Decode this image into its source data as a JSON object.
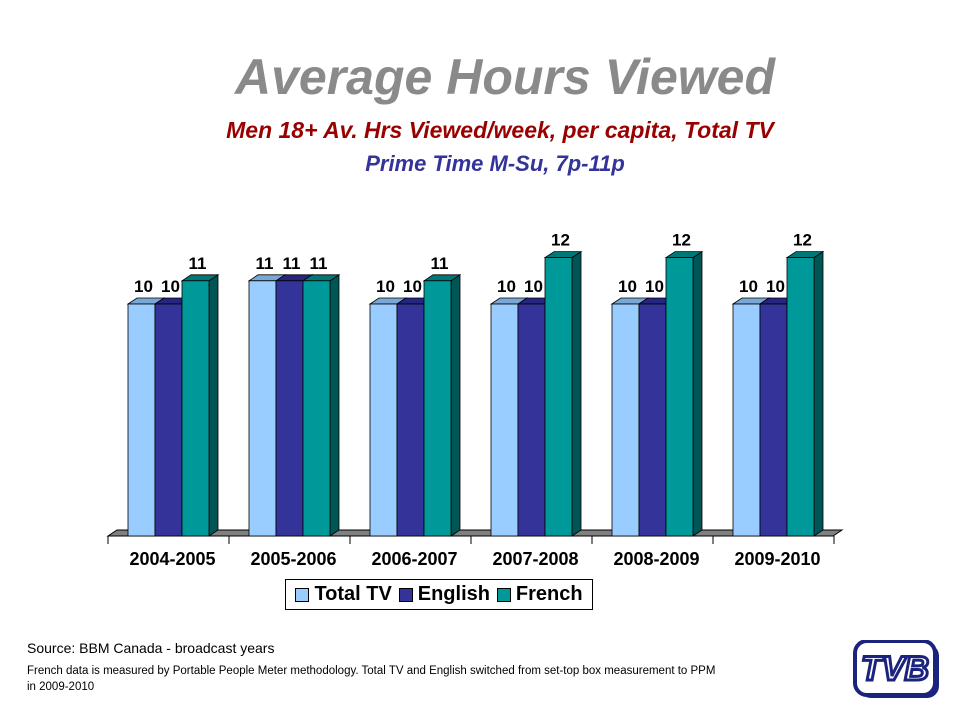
{
  "title": "Average Hours Viewed",
  "subtitle1": "Men 18+ Av. Hrs Viewed/week, per capita, Total TV",
  "subtitle2": "Prime Time M-Su, 7p-11p",
  "source": "Source: BBM Canada - broadcast years",
  "note": "French data is measured by Portable People Meter methodology. Total TV and English switched from set-top box measurement  to PPM in 2009-2010",
  "logo_text": "TVB",
  "colors": {
    "total_tv": "#99CCFF",
    "english": "#333399",
    "french": "#009999",
    "title": "#8a8a8a",
    "subtitle1": "#990000",
    "subtitle2": "#333399"
  },
  "chart_data": {
    "type": "bar",
    "title": "Average Hours Viewed",
    "categories": [
      "2004-2005",
      "2005-2006",
      "2006-2007",
      "2007-2008",
      "2008-2009",
      "2009-2010"
    ],
    "series": [
      {
        "name": "Total TV",
        "values": [
          10,
          11,
          10,
          10,
          10,
          10
        ]
      },
      {
        "name": "English",
        "values": [
          10,
          11,
          10,
          10,
          10,
          10
        ]
      },
      {
        "name": "French",
        "values": [
          11,
          11,
          11,
          12,
          12,
          12
        ]
      }
    ],
    "ylim": [
      0,
      13
    ],
    "legend": "bottom",
    "grid": false,
    "style": "3d"
  }
}
